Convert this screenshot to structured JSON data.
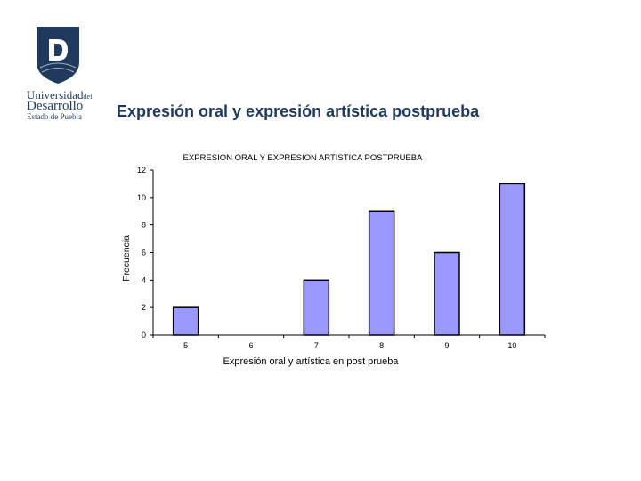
{
  "logo": {
    "name_line1": "Universidad",
    "name_line1_small": "del",
    "name_line2": "Desarrollo",
    "name_line3": "Estado de Puebla",
    "color": "#1f3a5c"
  },
  "slide_title": "Expresión oral y expresión artística postprueba",
  "chart_data": {
    "type": "bar",
    "title": "EXPRESION ORAL Y EXPRESION ARTISTICA POSTPRUEBA",
    "xlabel": "Expresión oral y artística en post prueba",
    "ylabel": "Frecuencia",
    "categories": [
      "5",
      "6",
      "7",
      "8",
      "9",
      "10"
    ],
    "values": [
      2,
      0,
      4,
      9,
      6,
      11
    ],
    "ylim": [
      0,
      12
    ],
    "yticks": [
      "0",
      "2",
      "4",
      "6",
      "8",
      "10",
      "12"
    ],
    "bar_color": "#9999ff",
    "grid": false,
    "legend": "none"
  }
}
